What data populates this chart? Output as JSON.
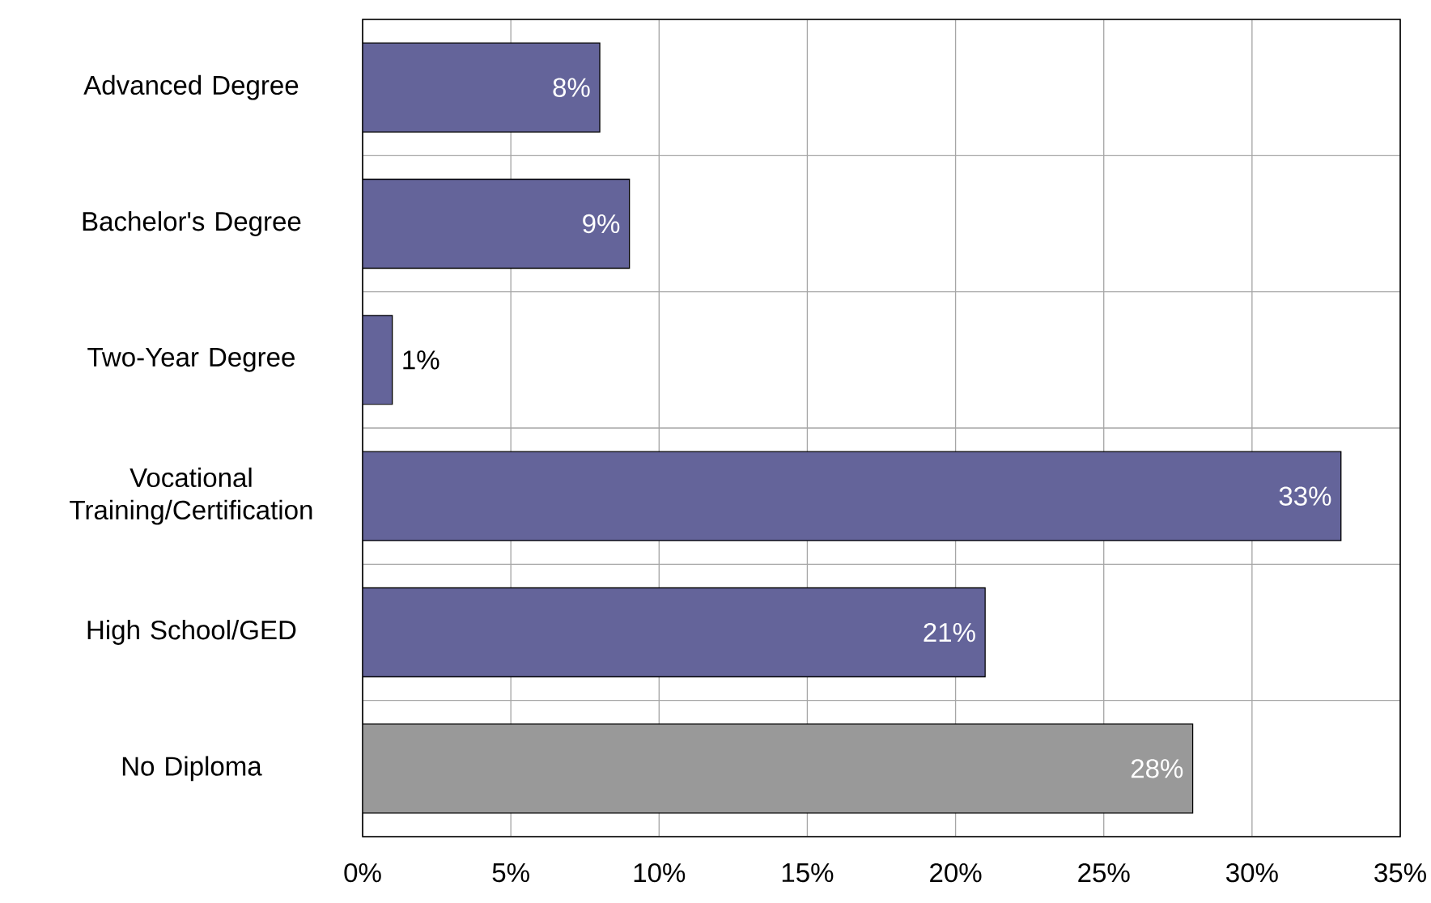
{
  "chart_data": {
    "type": "bar",
    "orientation": "horizontal",
    "categories": [
      "Advanced Degree",
      "Bachelor's Degree",
      "Two-Year Degree",
      "Vocational Training/Certification",
      "High School/GED",
      "No Diploma"
    ],
    "values": [
      8,
      9,
      1,
      33,
      21,
      28
    ],
    "colors": [
      "#64649a",
      "#64649a",
      "#64649a",
      "#64649a",
      "#64649a",
      "#999999"
    ],
    "value_labels": [
      "8%",
      "9%",
      "1%",
      "33%",
      "21%",
      "28%"
    ],
    "xlim": [
      0,
      35
    ],
    "xticks": [
      {
        "value": 0,
        "label": "0%"
      },
      {
        "value": 5,
        "label": "5%"
      },
      {
        "value": 10,
        "label": "10%"
      },
      {
        "value": 15,
        "label": "15%"
      },
      {
        "value": 20,
        "label": "20%"
      },
      {
        "value": 25,
        "label": "25%"
      },
      {
        "value": 30,
        "label": "30%"
      },
      {
        "value": 35,
        "label": "35%"
      }
    ],
    "grid": true
  }
}
